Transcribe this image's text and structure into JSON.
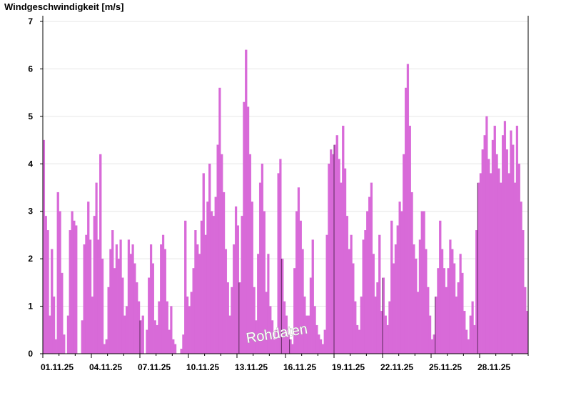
{
  "chart_data": {
    "type": "bar",
    "ylabel": "Windgeschwindigkeit [m/s]",
    "ylim": [
      0,
      7
    ],
    "yticks": [
      "0",
      "1",
      "2",
      "3",
      "4",
      "5",
      "6",
      "7"
    ],
    "xlim": [
      "01.11.25",
      "01.12.25"
    ],
    "xticks": [
      "01.11.25",
      "04.11.25",
      "07.11.25",
      "10.11.25",
      "13.11.25",
      "16.11.25",
      "19.11.25",
      "22.11.25",
      "25.11.25",
      "28.11.25"
    ],
    "grid": true,
    "watermark": "Rohdaten",
    "bar_color": "#d86ad8",
    "series": [
      {
        "day": [
          "01.11.25",
          "01.11.25",
          "01.11.25",
          "01.11.25",
          "01.11.25",
          "01.11.25",
          "01.11.25",
          "01.11.25",
          "02.11.25",
          "02.11.25",
          "02.11.25",
          "02.11.25",
          "02.11.25",
          "02.11.25",
          "02.11.25",
          "02.11.25",
          "03.11.25",
          "03.11.25",
          "03.11.25",
          "03.11.25",
          "03.11.25",
          "03.11.25",
          "03.11.25",
          "03.11.25",
          "04.11.25",
          "04.11.25",
          "04.11.25",
          "04.11.25",
          "04.11.25",
          "04.11.25",
          "04.11.25",
          "04.11.25",
          "05.11.25",
          "05.11.25",
          "05.11.25",
          "05.11.25",
          "05.11.25",
          "05.11.25",
          "05.11.25",
          "05.11.25",
          "06.11.25",
          "06.11.25",
          "06.11.25",
          "06.11.25",
          "06.11.25",
          "06.11.25",
          "06.11.25",
          "06.11.25",
          "07.11.25",
          "07.11.25",
          "07.11.25",
          "07.11.25",
          "07.11.25",
          "07.11.25",
          "07.11.25",
          "07.11.25",
          "08.11.25",
          "08.11.25",
          "08.11.25",
          "08.11.25",
          "08.11.25",
          "08.11.25",
          "08.11.25",
          "08.11.25",
          "09.11.25",
          "09.11.25",
          "09.11.25",
          "09.11.25",
          "09.11.25",
          "09.11.25",
          "09.11.25",
          "09.11.25",
          "10.11.25",
          "10.11.25",
          "10.11.25",
          "10.11.25",
          "10.11.25",
          "10.11.25",
          "10.11.25",
          "10.11.25",
          "11.11.25",
          "11.11.25",
          "11.11.25",
          "11.11.25",
          "11.11.25",
          "11.11.25",
          "11.11.25",
          "11.11.25",
          "12.11.25",
          "12.11.25",
          "12.11.25",
          "12.11.25",
          "12.11.25",
          "12.11.25",
          "12.11.25",
          "12.11.25",
          "13.11.25",
          "13.11.25",
          "13.11.25",
          "13.11.25",
          "13.11.25",
          "13.11.25",
          "13.11.25",
          "13.11.25",
          "14.11.25",
          "14.11.25",
          "14.11.25",
          "14.11.25",
          "14.11.25",
          "14.11.25",
          "14.11.25",
          "14.11.25",
          "15.11.25",
          "15.11.25",
          "15.11.25",
          "15.11.25",
          "15.11.25",
          "15.11.25",
          "15.11.25",
          "15.11.25",
          "16.11.25",
          "16.11.25",
          "16.11.25",
          "16.11.25",
          "16.11.25",
          "16.11.25",
          "16.11.25",
          "16.11.25",
          "17.11.25",
          "17.11.25",
          "17.11.25",
          "17.11.25",
          "17.11.25",
          "17.11.25",
          "17.11.25",
          "17.11.25",
          "18.11.25",
          "18.11.25",
          "18.11.25",
          "18.11.25",
          "18.11.25",
          "18.11.25",
          "18.11.25",
          "18.11.25",
          "19.11.25",
          "19.11.25",
          "19.11.25",
          "19.11.25",
          "19.11.25",
          "19.11.25",
          "19.11.25",
          "19.11.25",
          "20.11.25",
          "20.11.25",
          "20.11.25",
          "20.11.25",
          "20.11.25",
          "20.11.25",
          "20.11.25",
          "20.11.25",
          "21.11.25",
          "21.11.25",
          "21.11.25",
          "21.11.25",
          "21.11.25",
          "21.11.25",
          "21.11.25",
          "21.11.25",
          "22.11.25",
          "22.11.25",
          "22.11.25",
          "22.11.25",
          "22.11.25",
          "22.11.25",
          "22.11.25",
          "22.11.25",
          "23.11.25",
          "23.11.25",
          "23.11.25",
          "23.11.25",
          "23.11.25",
          "23.11.25",
          "23.11.25",
          "23.11.25",
          "24.11.25",
          "24.11.25",
          "24.11.25",
          "24.11.25",
          "24.11.25",
          "24.11.25",
          "24.11.25",
          "24.11.25",
          "25.11.25",
          "25.11.25",
          "25.11.25",
          "25.11.25",
          "25.11.25",
          "25.11.25",
          "25.11.25",
          "25.11.25",
          "26.11.25",
          "26.11.25",
          "26.11.25",
          "26.11.25",
          "26.11.25",
          "26.11.25",
          "26.11.25",
          "26.11.25",
          "27.11.25",
          "27.11.25",
          "27.11.25",
          "27.11.25",
          "27.11.25",
          "27.11.25",
          "27.11.25",
          "27.11.25",
          "28.11.25",
          "28.11.25",
          "28.11.25",
          "28.11.25",
          "28.11.25",
          "28.11.25",
          "28.11.25",
          "28.11.25",
          "29.11.25",
          "29.11.25",
          "29.11.25",
          "29.11.25",
          "29.11.25",
          "29.11.25",
          "29.11.25",
          "29.11.25",
          "30.11.25",
          "30.11.25",
          "30.11.25",
          "30.11.25",
          "30.11.25",
          "30.11.25",
          "30.11.25",
          "30.11.25"
        ],
        "hour": [
          "00:00",
          "03:00",
          "06:00",
          "09:00",
          "12:00",
          "15:00",
          "18:00",
          "21:00",
          "00:00",
          "03:00",
          "06:00",
          "09:00",
          "12:00",
          "15:00",
          "18:00",
          "21:00",
          "00:00",
          "03:00",
          "06:00",
          "09:00",
          "12:00",
          "15:00",
          "18:00",
          "21:00",
          "00:00",
          "03:00",
          "06:00",
          "09:00",
          "12:00",
          "15:00",
          "18:00",
          "21:00",
          "00:00",
          "03:00",
          "06:00",
          "09:00",
          "12:00",
          "15:00",
          "18:00",
          "21:00",
          "00:00",
          "03:00",
          "06:00",
          "09:00",
          "12:00",
          "15:00",
          "18:00",
          "21:00",
          "00:00",
          "03:00",
          "06:00",
          "09:00",
          "12:00",
          "15:00",
          "18:00",
          "21:00",
          "00:00",
          "03:00",
          "06:00",
          "09:00",
          "12:00",
          "15:00",
          "18:00",
          "21:00",
          "00:00",
          "03:00",
          "06:00",
          "09:00",
          "12:00",
          "15:00",
          "18:00",
          "21:00",
          "00:00",
          "03:00",
          "06:00",
          "09:00",
          "12:00",
          "15:00",
          "18:00",
          "21:00",
          "00:00",
          "03:00",
          "06:00",
          "09:00",
          "12:00",
          "15:00",
          "18:00",
          "21:00",
          "00:00",
          "03:00",
          "06:00",
          "09:00",
          "12:00",
          "15:00",
          "18:00",
          "21:00",
          "00:00",
          "03:00",
          "06:00",
          "09:00",
          "12:00",
          "15:00",
          "18:00",
          "21:00",
          "00:00",
          "03:00",
          "06:00",
          "09:00",
          "12:00",
          "15:00",
          "18:00",
          "21:00",
          "00:00",
          "03:00",
          "06:00",
          "09:00",
          "12:00",
          "15:00",
          "18:00",
          "21:00",
          "00:00",
          "03:00",
          "06:00",
          "09:00",
          "12:00",
          "15:00",
          "18:00",
          "21:00",
          "00:00",
          "03:00",
          "06:00",
          "09:00",
          "12:00",
          "15:00",
          "18:00",
          "21:00",
          "00:00",
          "03:00",
          "06:00",
          "09:00",
          "12:00",
          "15:00",
          "18:00",
          "21:00",
          "00:00",
          "03:00",
          "06:00",
          "09:00",
          "12:00",
          "15:00",
          "18:00",
          "21:00",
          "00:00",
          "03:00",
          "06:00",
          "09:00",
          "12:00",
          "15:00",
          "18:00",
          "21:00",
          "00:00",
          "03:00",
          "06:00",
          "09:00",
          "12:00",
          "15:00",
          "18:00",
          "21:00",
          "00:00",
          "03:00",
          "06:00",
          "09:00",
          "12:00",
          "15:00",
          "18:00",
          "21:00",
          "00:00",
          "03:00",
          "06:00",
          "09:00",
          "12:00",
          "15:00",
          "18:00",
          "21:00",
          "00:00",
          "03:00",
          "06:00",
          "09:00",
          "12:00",
          "15:00",
          "18:00",
          "21:00",
          "00:00",
          "03:00",
          "06:00",
          "09:00",
          "12:00",
          "15:00",
          "18:00",
          "21:00",
          "00:00",
          "03:00",
          "06:00",
          "09:00",
          "12:00",
          "15:00",
          "18:00",
          "21:00",
          "00:00",
          "03:00",
          "06:00",
          "09:00",
          "12:00",
          "15:00",
          "18:00",
          "21:00",
          "00:00",
          "03:00",
          "06:00",
          "09:00",
          "12:00",
          "15:00",
          "18:00",
          "21:00",
          "00:00",
          "03:00",
          "06:00",
          "09:00",
          "12:00",
          "15:00",
          "18:00",
          "21:00",
          "00:00",
          "03:00",
          "06:00",
          "09:00",
          "12:00",
          "15:00",
          "18:00",
          "21:00"
        ],
        "values": [
          4.5,
          2.9,
          2.6,
          0.8,
          2.2,
          1.2,
          0.3,
          3.4,
          3.0,
          1.7,
          0.4,
          0.0,
          0.8,
          2.6,
          3.0,
          2.8,
          2.7,
          0.0,
          0.0,
          0.7,
          2.3,
          2.5,
          3.2,
          2.4,
          1.2,
          2.9,
          3.6,
          2.4,
          4.2,
          2.0,
          0.2,
          0.3,
          1.4,
          2.2,
          2.6,
          1.8,
          2.3,
          2.0,
          2.4,
          1.6,
          0.8,
          1.0,
          2.4,
          2.1,
          2.3,
          1.9,
          1.5,
          1.1,
          0.7,
          0.8,
          0.0,
          0.5,
          1.6,
          2.3,
          1.9,
          0.7,
          0.6,
          1.1,
          2.3,
          2.5,
          2.2,
          1.1,
          0.5,
          1.0,
          0.3,
          0.2,
          0.0,
          0.0,
          0.1,
          0.4,
          2.8,
          1.2,
          1.0,
          1.3,
          1.8,
          2.6,
          2.3,
          2.1,
          2.8,
          3.8,
          2.5,
          3.2,
          4.0,
          3.0,
          2.9,
          3.3,
          4.4,
          5.6,
          4.2,
          3.4,
          2.2,
          1.5,
          0.8,
          1.4,
          2.3,
          3.1,
          2.7,
          1.5,
          2.9,
          5.3,
          6.4,
          5.2,
          4.2,
          3.2,
          1.4,
          0.7,
          2.1,
          3.6,
          4.0,
          3.0,
          1.3,
          2.1,
          1.0,
          0.7,
          0.3,
          0.5,
          3.8,
          4.1,
          2.0,
          1.1,
          0.8,
          0.4,
          0.3,
          0.2,
          1.8,
          3.0,
          3.5,
          2.8,
          2.2,
          1.2,
          0.8,
          0.8,
          1.6,
          2.4,
          1.0,
          0.6,
          0.4,
          0.3,
          0.2,
          0.5,
          2.5,
          4.0,
          4.3,
          4.2,
          4.4,
          4.6,
          4.1,
          3.6,
          4.8,
          3.9,
          2.9,
          2.2,
          2.5,
          1.9,
          1.1,
          0.6,
          0.5,
          1.2,
          2.4,
          2.6,
          3.0,
          3.3,
          3.6,
          2.1,
          1.2,
          1.5,
          2.5,
          0.9,
          1.6,
          0.8,
          0.6,
          1.1,
          2.8,
          1.9,
          2.3,
          2.7,
          3.2,
          3.0,
          4.2,
          5.6,
          6.1,
          4.8,
          3.4,
          2.3,
          2.0,
          1.3,
          2.4,
          3.0,
          3.0,
          2.2,
          1.4,
          0.8,
          0.3,
          0.4,
          1.2,
          1.8,
          2.8,
          2.2,
          1.8,
          1.4,
          1.8,
          2.4,
          2.2,
          1.9,
          1.2,
          1.5,
          2.1,
          1.7,
          0.9,
          0.5,
          0.3,
          0.8,
          1.1,
          0.6,
          2.6,
          3.6,
          3.8,
          4.3,
          4.6,
          5.0,
          4.1,
          3.8,
          4.5,
          4.8,
          4.2,
          3.9,
          3.6,
          4.6,
          4.9,
          4.3,
          3.8,
          4.7,
          4.4,
          3.6,
          4.8,
          4.0,
          3.2,
          2.6,
          1.4,
          0.9
        ]
      }
    ],
    "vmarkers": [
      "03.11.25 03:00",
      "07.11.25 00:00",
      "09.11.25 06:00",
      "13.11.25 03:00",
      "15.11.25 18:00",
      "16.11.25 06:00",
      "19.11.25 00:00",
      "22.11.25 00:00",
      "25.11.25 06:00",
      "27.11.25 21:00"
    ]
  }
}
